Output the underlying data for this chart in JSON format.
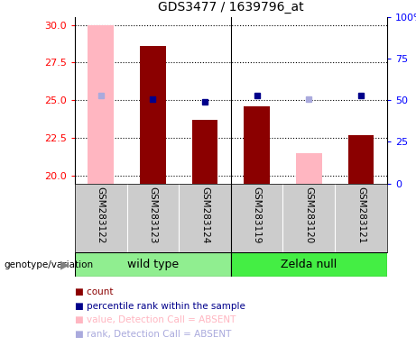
{
  "title": "GDS3477 / 1639796_at",
  "samples": [
    "GSM283122",
    "GSM283123",
    "GSM283124",
    "GSM283119",
    "GSM283120",
    "GSM283121"
  ],
  "ylim_left": [
    19.5,
    30.5
  ],
  "ylim_right": [
    0,
    100
  ],
  "yticks_left": [
    20,
    22.5,
    25,
    27.5,
    30
  ],
  "yticks_right": [
    0,
    25,
    50,
    75,
    100
  ],
  "bar_values": [
    null,
    28.6,
    23.7,
    24.6,
    null,
    22.7
  ],
  "bar_absent_values": [
    30.0,
    null,
    null,
    null,
    21.5,
    null
  ],
  "rank_present": [
    null,
    51,
    49,
    53,
    null,
    53
  ],
  "rank_absent": [
    53,
    null,
    null,
    null,
    51,
    null
  ],
  "bar_color": "#8b0000",
  "bar_absent_color": "#ffb6c1",
  "rank_present_color": "#00008b",
  "rank_absent_color": "#aaaadd",
  "wt_color": "#90ee90",
  "zn_color": "#44ee44",
  "bg_color": "#cccccc",
  "plot_bg": "#ffffff",
  "bar_width": 0.5,
  "legend_labels": [
    "count",
    "percentile rank within the sample",
    "value, Detection Call = ABSENT",
    "rank, Detection Call = ABSENT"
  ],
  "legend_colors": [
    "#8b0000",
    "#00008b",
    "#ffb6c1",
    "#aaaadd"
  ]
}
